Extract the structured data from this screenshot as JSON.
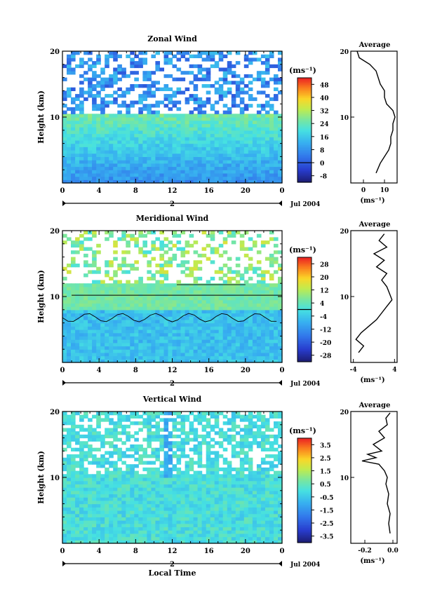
{
  "chart_data": [
    {
      "type": "heatmap",
      "title": "Zonal Wind",
      "ylabel": "Height (km)",
      "unit_label": "(ms⁻¹)",
      "x_ticks": [
        "0",
        "4",
        "8",
        "12",
        "16",
        "20",
        "0"
      ],
      "y_ticks": [
        "20",
        "10"
      ],
      "xlim": [
        0,
        24
      ],
      "ylim": [
        0,
        20
      ],
      "day_label": "2",
      "date_label": "Jul 2004",
      "colorbar_ticks": [
        "48",
        "40",
        "32",
        "24",
        "16",
        "8",
        "0",
        "-8"
      ],
      "colorbar_range": [
        -12,
        52
      ],
      "zero_contour_level": 0,
      "grid": false,
      "avg_profile": {
        "title": "Average",
        "xlabel": "(ms⁻¹)",
        "x_ticks": [
          "0",
          "10"
        ],
        "y_ticks": [
          "20",
          "10"
        ],
        "xlim": [
          -6,
          16
        ],
        "heights": [
          1.5,
          3,
          4,
          5,
          6,
          7,
          8,
          9,
          10,
          11,
          12,
          13,
          14,
          15,
          16,
          17,
          18,
          19,
          20
        ],
        "values": [
          6,
          8,
          10,
          12,
          13,
          13,
          14,
          14,
          15,
          14,
          11,
          10,
          10,
          8,
          7,
          6,
          3,
          -2,
          -3
        ]
      }
    },
    {
      "type": "heatmap",
      "title": "Meridional Wind",
      "ylabel": "Height (km)",
      "unit_label": "(ms⁻¹)",
      "x_ticks": [
        "0",
        "4",
        "8",
        "12",
        "16",
        "20",
        "0"
      ],
      "y_ticks": [
        "20",
        "10"
      ],
      "xlim": [
        0,
        24
      ],
      "ylim": [
        0,
        20
      ],
      "day_label": "2",
      "date_label": "Jul 2004",
      "colorbar_ticks": [
        "28",
        "20",
        "12",
        "4",
        "-4",
        "-12",
        "-20",
        "-28"
      ],
      "colorbar_range": [
        -32,
        32
      ],
      "zero_contour_level": 0,
      "grid": false,
      "avg_profile": {
        "title": "Average",
        "xlabel": "(ms⁻¹)",
        "x_ticks": [
          "-4",
          "4"
        ],
        "y_ticks": [
          "20",
          "10"
        ],
        "xlim": [
          -4.5,
          4.5
        ],
        "heights": [
          1.5,
          2.5,
          3.5,
          4.5,
          5.5,
          6.5,
          7.5,
          8.5,
          9.5,
          10.5,
          11.5,
          12.5,
          13.5,
          14.5,
          15.5,
          16.5,
          17.5,
          18.5,
          19.5
        ],
        "values": [
          -3,
          -2,
          -3.5,
          -2.5,
          -1,
          0.5,
          1.5,
          2.5,
          3.5,
          3,
          2.5,
          1.5,
          2.5,
          0.5,
          2,
          0,
          2.5,
          1,
          2
        ]
      }
    },
    {
      "type": "heatmap",
      "title": "Vertical Wind",
      "ylabel": "Height (km)",
      "unit_label": "(ms⁻¹)",
      "x_ticks": [
        "0",
        "4",
        "8",
        "12",
        "16",
        "20",
        "0"
      ],
      "y_ticks": [
        "20",
        "10"
      ],
      "xlim": [
        0,
        24
      ],
      "ylim": [
        0,
        20
      ],
      "day_label": "2",
      "date_label": "Jul 2004",
      "xlabel": "Local Time",
      "colorbar_ticks": [
        "3.5",
        "2.5",
        "1.5",
        "0.5",
        "-0.5",
        "-1.5",
        "-2.5",
        "-3.5"
      ],
      "colorbar_range": [
        -4,
        4
      ],
      "grid": false,
      "avg_profile": {
        "title": "Average",
        "xlabel": "(ms⁻¹)",
        "x_ticks": [
          "-0.2",
          "0.0"
        ],
        "y_ticks": [
          "20",
          "10"
        ],
        "xlim": [
          -0.3,
          0.03
        ],
        "heights": [
          1.5,
          3,
          4.5,
          6,
          7.5,
          9,
          10,
          11,
          12,
          12.5,
          13,
          13.5,
          14,
          15,
          16,
          17,
          18,
          19,
          19.8
        ],
        "values": [
          -0.02,
          -0.03,
          -0.02,
          -0.04,
          -0.03,
          -0.05,
          -0.04,
          -0.06,
          -0.1,
          -0.22,
          -0.12,
          -0.18,
          -0.08,
          -0.14,
          -0.06,
          -0.1,
          -0.04,
          -0.05,
          -0.02
        ]
      }
    }
  ]
}
